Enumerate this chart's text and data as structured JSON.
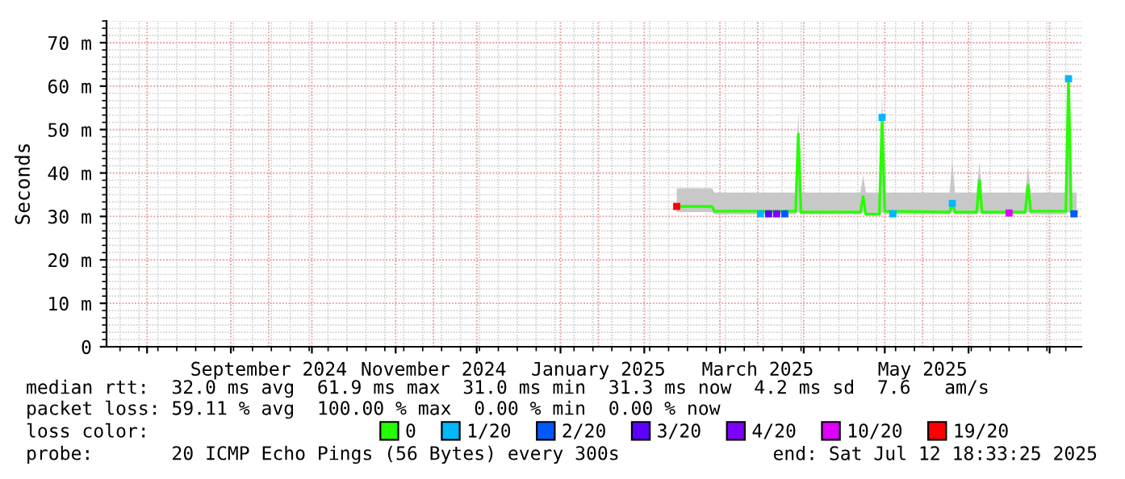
{
  "chart_data": {
    "type": "line",
    "ylabel": "Seconds",
    "legend_title": "loss color:",
    "x": [
      "2025-02-13",
      "2025-02-26",
      "2025-02-27",
      "2025-03-29",
      "2025-03-30",
      "2025-03-31",
      "2025-04-22",
      "2025-04-23",
      "2025-04-24",
      "2025-04-29",
      "2025-04-30",
      "2025-05-01",
      "2025-05-25",
      "2025-05-26",
      "2025-05-27",
      "2025-06-04",
      "2025-06-05",
      "2025-06-06",
      "2025-06-22",
      "2025-06-23",
      "2025-06-24",
      "2025-07-07",
      "2025-07-08",
      "2025-07-09",
      "2025-07-11"
    ],
    "series": [
      {
        "name": "0",
        "color": "#26ff00",
        "values": [
          32.3,
          32.3,
          31.2,
          31.2,
          49,
          31,
          31,
          34.6,
          30.5,
          30.5,
          52.8,
          31.2,
          31,
          33,
          31,
          31,
          38.3,
          31,
          31,
          37.2,
          31.2,
          31.2,
          61.7,
          31,
          31
        ],
        "lower": [
          31,
          31,
          30.5,
          30.5,
          31,
          30.5,
          30.5,
          31,
          30.2,
          30.2,
          31,
          30.5,
          30.5,
          31,
          30.5,
          30.5,
          31,
          30.5,
          30.5,
          31,
          30.5,
          30.5,
          31,
          30.5,
          30.5
        ],
        "upper": [
          36.5,
          36.5,
          35.5,
          35.5,
          54,
          35.5,
          35.5,
          39.5,
          35.5,
          35.5,
          58,
          35.5,
          35.5,
          43,
          35.5,
          35.5,
          42.5,
          35.5,
          35.5,
          41.5,
          35.5,
          35.5,
          65.5,
          35.5,
          35.5
        ]
      },
      {
        "name": "1/20",
        "type": "scatter",
        "marker": "square",
        "color": "#00b8ff",
        "x": [
          "2025-03-16",
          "2025-04-30",
          "2025-05-04",
          "2025-05-26",
          "2025-07-08"
        ],
        "values": [
          30.6,
          52.8,
          30.6,
          33,
          61.7
        ]
      },
      {
        "name": "2/20",
        "type": "scatter",
        "marker": "square",
        "color": "#0059ff",
        "x": [
          "2025-03-25",
          "2025-07-10"
        ],
        "values": [
          30.6,
          30.6
        ]
      },
      {
        "name": "3/20",
        "type": "scatter",
        "marker": "square",
        "color": "#5e00ff",
        "x": [
          "2025-03-19"
        ],
        "values": [
          30.6
        ]
      },
      {
        "name": "4/20",
        "type": "scatter",
        "marker": "square",
        "color": "#7e00ff",
        "x": [
          "2025-03-22"
        ],
        "values": [
          30.6
        ]
      },
      {
        "name": "10/20",
        "type": "scatter",
        "marker": "square",
        "color": "#dd00ff",
        "x": [
          "2025-06-16"
        ],
        "values": [
          30.8
        ]
      },
      {
        "name": "19/20",
        "type": "scatter",
        "marker": "square",
        "color": "#ff0000",
        "x": [
          "2025-02-13"
        ],
        "values": [
          32.3
        ]
      }
    ],
    "legend": "bottom",
    "grid": true,
    "xlim": [
      "2024-07-17",
      "2025-07-12T18:33"
    ],
    "xticks": [
      {
        "value": "2024-08-01",
        "label": null
      },
      {
        "value": "2024-09-01",
        "label": null
      },
      {
        "value": "2024-09-15",
        "label": "September 2024"
      },
      {
        "value": "2024-10-01",
        "label": null
      },
      {
        "value": "2024-11-01",
        "label": null
      },
      {
        "value": "2024-11-15",
        "label": "November 2024"
      },
      {
        "value": "2024-12-01",
        "label": null
      },
      {
        "value": "2025-01-01",
        "label": null
      },
      {
        "value": "2025-01-15",
        "label": "January 2025"
      },
      {
        "value": "2025-02-01",
        "label": null
      },
      {
        "value": "2025-03-01",
        "label": null
      },
      {
        "value": "2025-03-15",
        "label": "March 2025"
      },
      {
        "value": "2025-04-01",
        "label": null
      },
      {
        "value": "2025-05-01",
        "label": null
      },
      {
        "value": "2025-05-15",
        "label": "May 2025"
      },
      {
        "value": "2025-06-01",
        "label": null
      },
      {
        "value": "2025-07-01",
        "label": null
      }
    ],
    "ylim": [
      0,
      75
    ],
    "yticks": [
      0,
      {
        "value": 10,
        "label": "10 m"
      },
      {
        "value": 20,
        "label": "20 m"
      },
      {
        "value": 30,
        "label": "30 m"
      },
      {
        "value": 40,
        "label": "40 m"
      },
      {
        "value": 50,
        "label": "50 m"
      },
      {
        "value": 60,
        "label": "60 m"
      },
      {
        "value": 70,
        "label": "70 m"
      }
    ],
    "annotations": [
      "median rtt:  32.0 ms avg  61.9 ms max  31.0 ms min  31.3 ms now  4.2 ms sd  7.6   am/s",
      "packet loss: 59.11 % avg  100.00 % max  0.00 % min  0.00 % now",
      "probe:       20 ICMP Echo Pings (56 Bytes) every 300s",
      "end: Sat Jul 12 18:33:25 2025"
    ]
  }
}
